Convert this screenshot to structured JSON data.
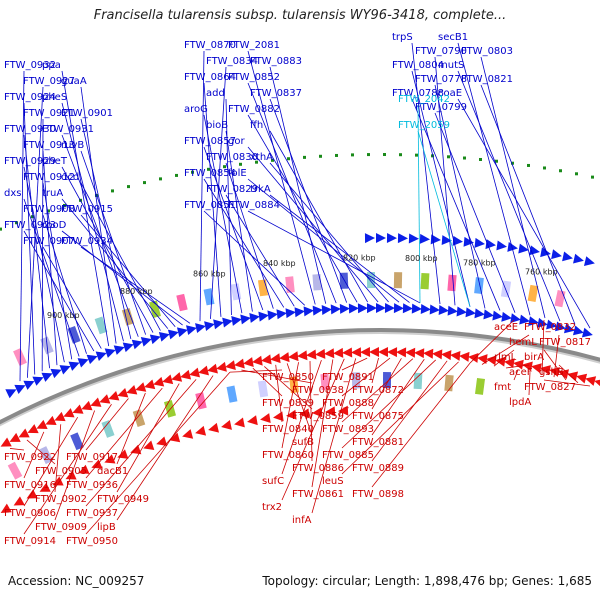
{
  "title": "Francisella tularensis subsp. tularensis WY96-3418, complete...",
  "footer": {
    "accession": "Accession: NC_009257",
    "summary": "Topology: circular; Length: 1,898,476 bp; Genes: 1,685"
  },
  "colors": {
    "forward_label": "#0000cc",
    "reverse_label": "#cc0000",
    "rna_label": "#00bbdd",
    "forward_feature": "#0b1fe8",
    "reverse_feature": "#ee1111",
    "backbone": "#8a8a8a",
    "tick_dot": "#1a8a1a"
  },
  "ticks": [
    "760 kbp",
    "780 kbp",
    "800 kbp",
    "820 kbp",
    "840 kbp",
    "860 kbp",
    "880 kbp",
    "900 kbp"
  ],
  "forward_labels": [
    "FTW_0932",
    "FTW_0927",
    "FTW_0924",
    "FTW_0921",
    "FTW_0930",
    "FTW_0913",
    "FTW_0929",
    "FTW_0912",
    "dxs",
    "FTW_0908",
    "FTW_0923",
    "FTW_0907",
    "ppa",
    "guaA",
    "pheS",
    "FTW_0901",
    "FTW_0931",
    "ruvB",
    "pheT",
    "dcd",
    "truA",
    "FTW_0915",
    "rpoD",
    "FTW_0934",
    "FTW_0870",
    "FTW_0834",
    "FTW_0864",
    "add",
    "aroG",
    "bioB",
    "FTW_0857",
    "FTW_0830",
    "FTW_0854",
    "FTW_0829",
    "FTW_0851",
    "FTW_2081",
    "FTW_0883",
    "FTW_0852",
    "FTW_0837",
    "FTW_0882",
    "ffh",
    "gor",
    "xthA",
    "folE",
    "trkA",
    "FTW_0884",
    "trpS",
    "FTW_0790",
    "FTW_0804",
    "FTW_0778",
    "FTW_0788",
    "FTW_0799",
    "secB1",
    "FTW_0803",
    "mutS",
    "FTW_0821",
    "coaE"
  ],
  "rna_labels": [
    "FTW_2042",
    "FTW_2059"
  ],
  "reverse_labels": [
    "aceE",
    "hemL",
    "rlmL",
    "aceF",
    "fmt",
    "lpdA",
    "FTW_0832",
    "FTW_0817",
    "birA",
    "gshB",
    "FTW_0827",
    "FTW_0850",
    "FTW_0838",
    "FTW_0839",
    "FTW_0859",
    "FTW_0840",
    "sufB",
    "FTW_0860",
    "FTW_0886",
    "sufC",
    "FTW_0861",
    "trx2",
    "infA",
    "FTW_0891",
    "FTW_0872",
    "FTW_0888",
    "FTW_0875",
    "FTW_0893",
    "FTW_0881",
    "FTW_0885",
    "FTW_0889",
    "leuS",
    "FTW_0898",
    "FTW_0922",
    "FTW_0905",
    "FTW_0916",
    "FTW_0902",
    "FTW_0906",
    "FTW_0909",
    "FTW_0914",
    "FTW_0917",
    "dacB1",
    "FTW_0936",
    "FTW_0949",
    "FTW_0937",
    "lipB",
    "FTW_0950"
  ]
}
